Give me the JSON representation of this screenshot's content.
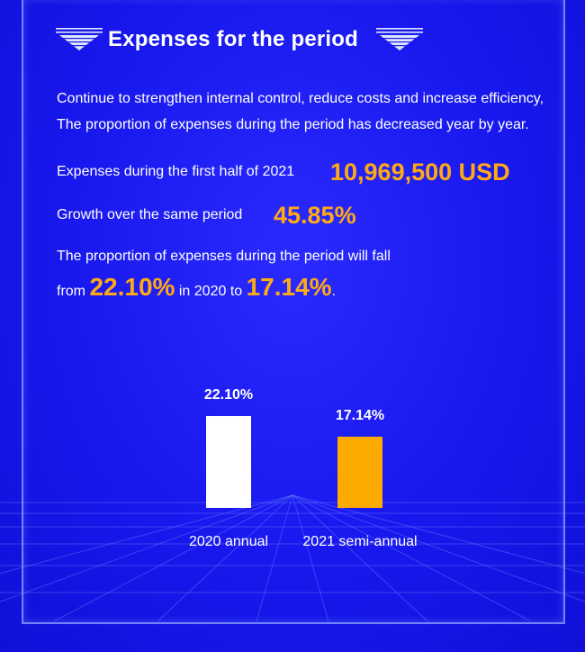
{
  "title": "Expenses for the period",
  "intro": {
    "line1": "Continue to strengthen internal control, reduce costs and increase efficiency,",
    "line2": "The proportion of expenses during the period has decreased year by year."
  },
  "expenses": {
    "label": "Expenses during the first half of 2021",
    "value": "10,969,500 USD"
  },
  "growth": {
    "label": "Growth over the same period",
    "value": "45.85%"
  },
  "proportion": {
    "line1": "The proportion of expenses during the period will fall",
    "from_word": "from",
    "from_value": "22.10%",
    "middle": "in 2020 to",
    "to_value": "17.14%",
    "end": "."
  },
  "colors": {
    "background": "#1a1af0",
    "accent": "#ffaa14",
    "bar_2020": "#ffffff",
    "bar_2021": "#ffaa00"
  },
  "chart_data": {
    "type": "bar",
    "categories": [
      "2020 annual",
      "2021 semi-annual"
    ],
    "values": [
      22.1,
      17.14
    ],
    "data_labels": [
      "22.10%",
      "17.14%"
    ],
    "ylim": [
      0,
      22.1
    ],
    "title": "",
    "xlabel": "",
    "ylabel": "",
    "grid": false,
    "legend": "none"
  }
}
